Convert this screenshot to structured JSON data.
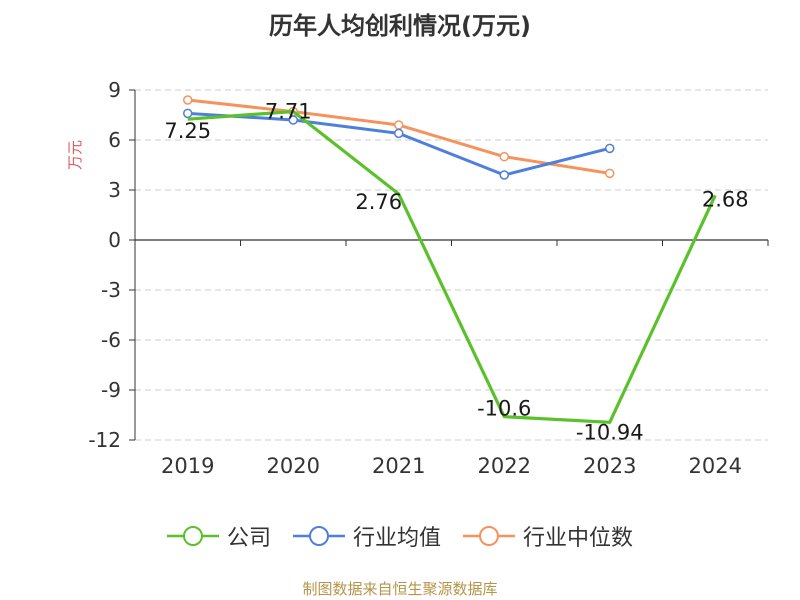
{
  "chart_data": {
    "type": "line",
    "title": "历年人均创利情况(万元)",
    "ylabel": "万元",
    "xlabel": "",
    "categories": [
      "2019",
      "2020",
      "2021",
      "2022",
      "2023",
      "2024"
    ],
    "ylim": [
      -12,
      9
    ],
    "yticks": [
      9,
      6,
      3,
      0,
      -3,
      -6,
      -9,
      -12
    ],
    "grid": true,
    "legend_position": "bottom",
    "series": [
      {
        "name": "公司",
        "color": "#5bc12a",
        "values": [
          7.25,
          7.71,
          2.76,
          -10.6,
          -10.94,
          2.68
        ],
        "data_labels": [
          "7.25",
          "7.71",
          "2.76",
          "-10.6",
          "-10.94",
          "2.68"
        ]
      },
      {
        "name": "行业均值",
        "color": "#4e7fdb",
        "values": [
          7.6,
          7.2,
          6.4,
          3.9,
          5.5,
          null
        ]
      },
      {
        "name": "行业中位数",
        "color": "#f5935d",
        "values": [
          8.4,
          7.7,
          6.9,
          5.0,
          4.0,
          null
        ]
      }
    ]
  },
  "footer": {
    "source": "制图数据来自恒生聚源数据库"
  }
}
